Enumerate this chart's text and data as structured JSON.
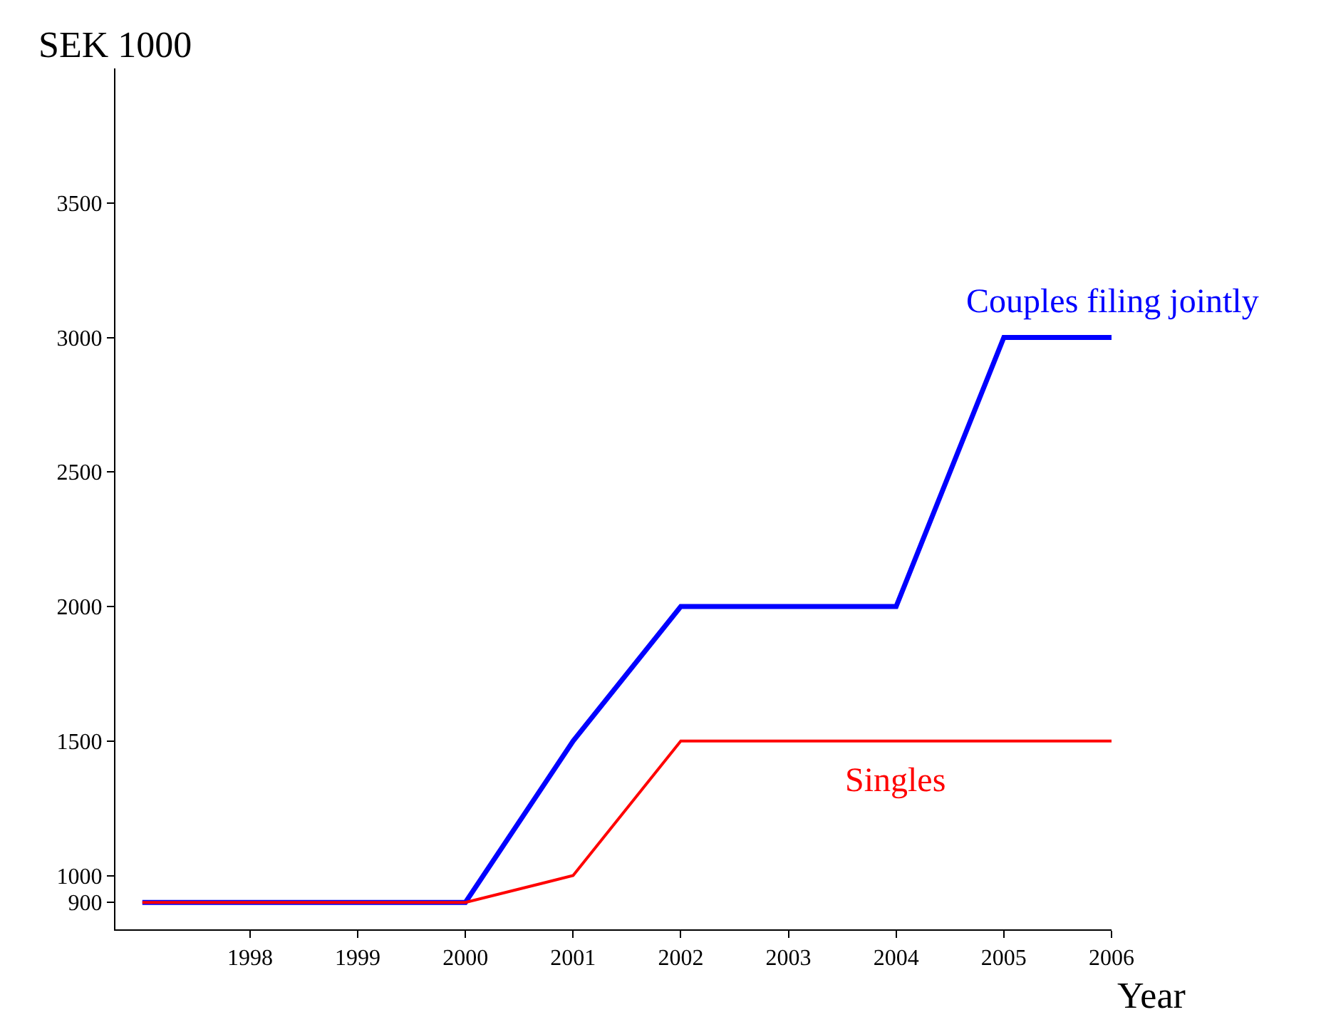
{
  "chart_data": {
    "type": "line",
    "ylabel": "SEK 1000",
    "xlabel": "Year",
    "x": [
      1997,
      1998,
      1999,
      2000,
      2001,
      2002,
      2003,
      2004,
      2005,
      2006
    ],
    "series": [
      {
        "name": "Couples filing jointly",
        "color": "#0000ff",
        "values": [
          900,
          900,
          900,
          900,
          1500,
          2000,
          2000,
          2000,
          3000,
          3000
        ]
      },
      {
        "name": "Singles",
        "color": "#ff0000",
        "values": [
          900,
          900,
          900,
          900,
          1000,
          1500,
          1500,
          1500,
          1500,
          1500
        ]
      }
    ],
    "xlim": [
      1996.75,
      2006
    ],
    "ylim": [
      800,
      4000
    ],
    "xticks": [
      1998,
      1999,
      2000,
      2001,
      2002,
      2003,
      2004,
      2005,
      2006
    ],
    "yticks": [
      900,
      1000,
      1500,
      2000,
      2500,
      3000,
      3500
    ],
    "grid": false,
    "legend": false,
    "marker": "none",
    "line_style": "solid"
  }
}
